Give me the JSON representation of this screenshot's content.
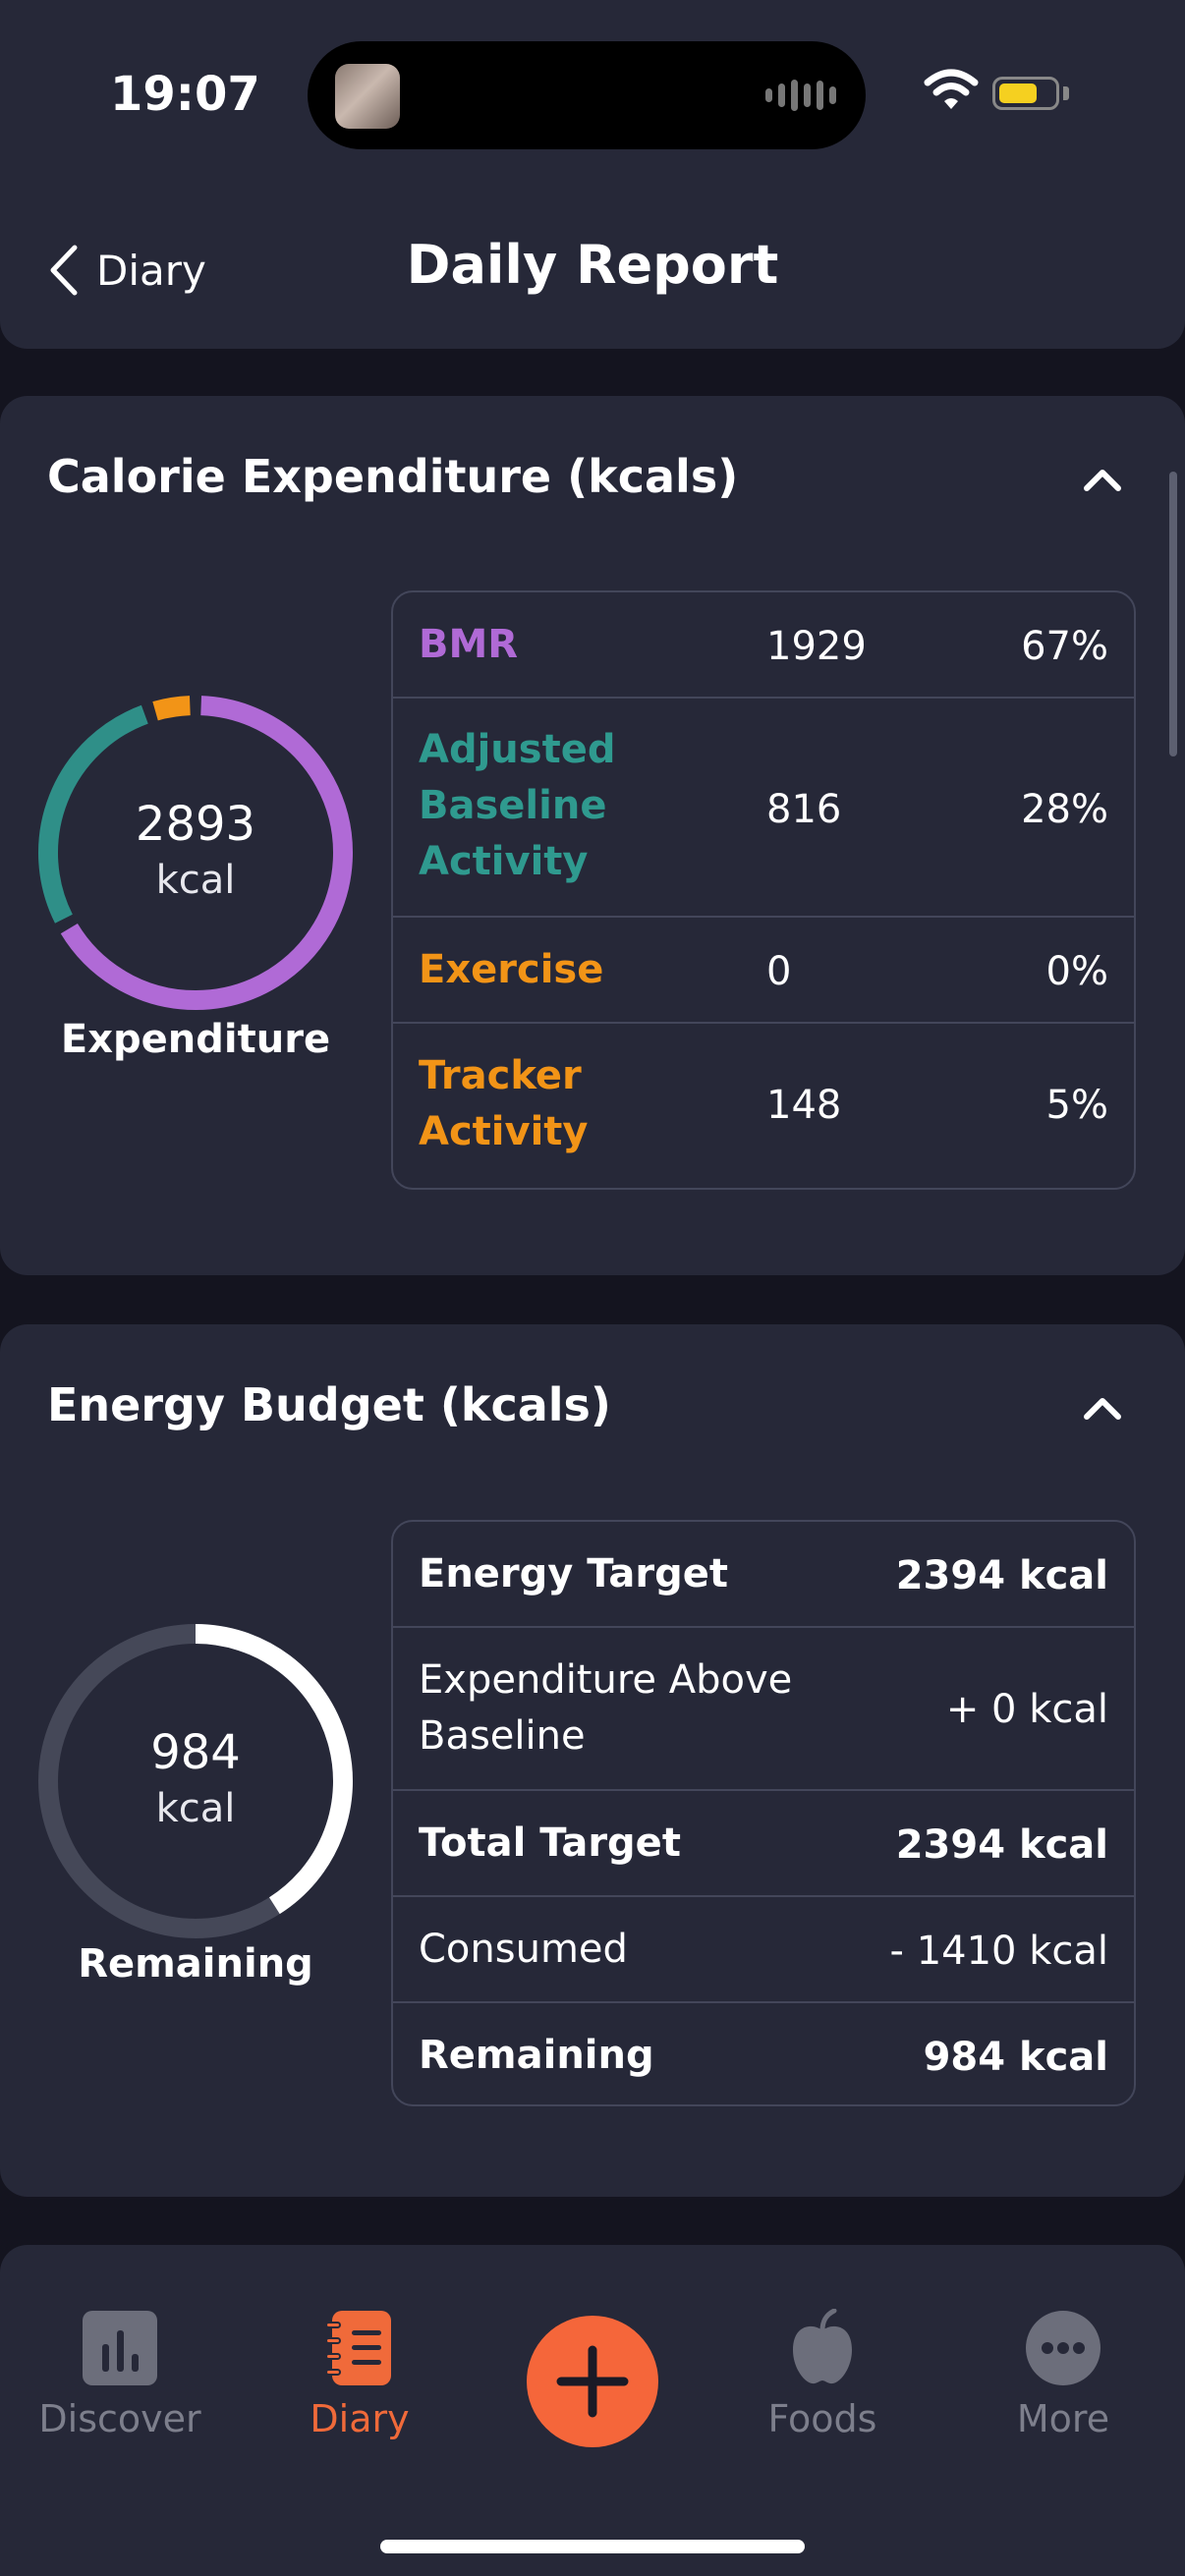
{
  "status_bar": {
    "time": "19:07"
  },
  "header": {
    "back_label": "Diary",
    "title": "Daily Report"
  },
  "calorie_card": {
    "title": "Calorie Expenditure (kcals)",
    "ring": {
      "value": "2893",
      "unit": "kcal",
      "caption": "Expenditure",
      "segments": [
        {
          "name": "BMR",
          "fraction": 0.67,
          "color": "#b06ad6"
        },
        {
          "name": "Adjusted Baseline Activity",
          "fraction": 0.28,
          "color": "#2f8f88"
        },
        {
          "name": "Tracker Activity",
          "fraction": 0.05,
          "color": "#f29417"
        }
      ]
    },
    "rows": [
      {
        "label": "BMR",
        "value": "1929",
        "pct": "67%",
        "color": "#b06ad6"
      },
      {
        "label1": "Adjusted",
        "label2": "Baseline",
        "label3": "Activity",
        "value": "816",
        "pct": "28%",
        "color": "#2f9a8f"
      },
      {
        "label": "Exercise",
        "value": "0",
        "pct": "0%",
        "color": "#f29417"
      },
      {
        "label1": "Tracker",
        "label2": "Activity",
        "value": "148",
        "pct": "5%",
        "color": "#f29417"
      }
    ]
  },
  "energy_card": {
    "title": "Energy Budget (kcals)",
    "ring": {
      "value": "984",
      "unit": "kcal",
      "caption": "Remaining",
      "remaining_fraction": 0.41
    },
    "rows": [
      {
        "label": "Energy Target",
        "value": "2394 kcal"
      },
      {
        "label1": "Expenditure Above",
        "label2": "Baseline",
        "value": "+ 0 kcal"
      },
      {
        "label": "Total Target",
        "value": "2394 kcal"
      },
      {
        "label": "Consumed",
        "value": "- 1410 kcal"
      },
      {
        "label": "Remaining",
        "value": "984 kcal"
      }
    ]
  },
  "tabs": {
    "discover": "Discover",
    "diary": "Diary",
    "foods": "Foods",
    "more": "More",
    "active_color": "#f06a3a",
    "inactive_color": "#7d7f8c"
  }
}
